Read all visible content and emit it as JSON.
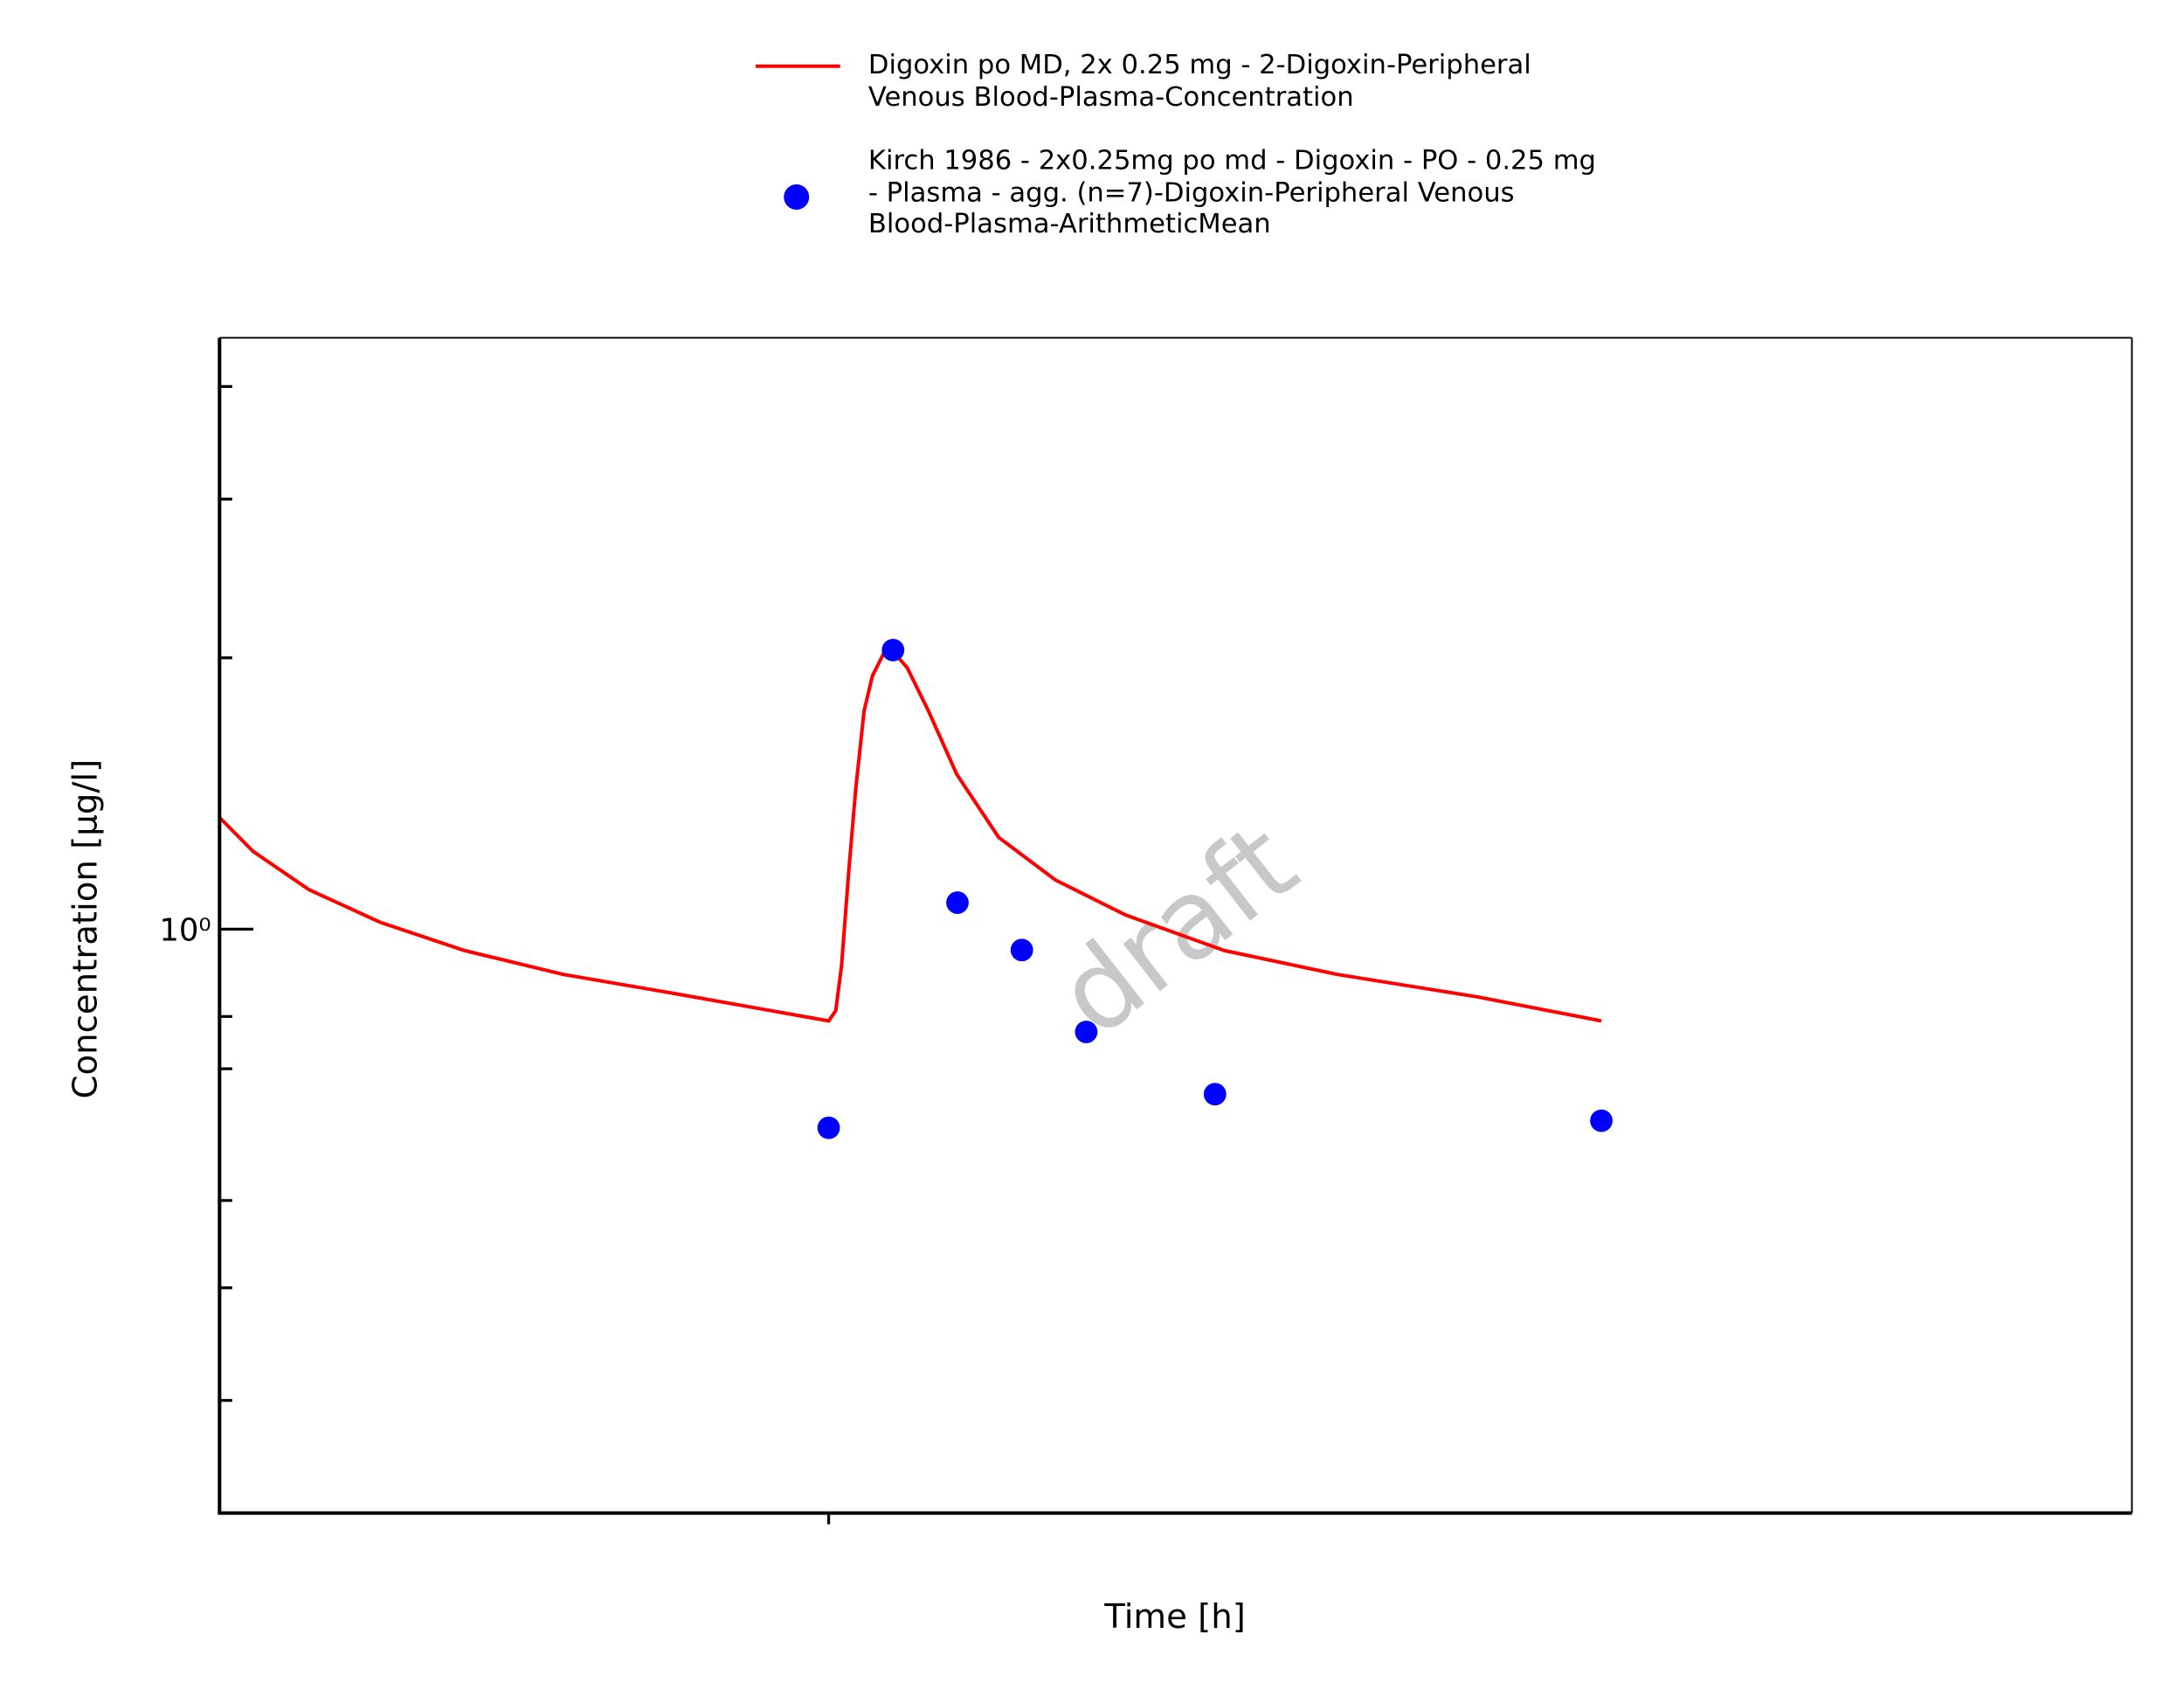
{
  "chart_data": {
    "type": "line",
    "x_label": "Time [h]",
    "y_label": "Concentration [µg/l]",
    "watermark": "draft",
    "log_y": true,
    "xlim": [
      14.54,
      44.24
    ],
    "xticks": [
      24
    ],
    "ylim": [
      0.225,
      4.53
    ],
    "yticks": [
      {
        "value": 1,
        "label": "10⁰"
      }
    ],
    "yminorticks": [
      0.3,
      0.4,
      0.5,
      0.7,
      0.8,
      2,
      3,
      4
    ],
    "legend": "top",
    "series": [
      {
        "name": "Digoxin po MD, 2x 0.25 mg - 2-Digoxin-Peripheral Venous Blood-Plasma-Concentration",
        "mode": "line",
        "color": "#ff0000",
        "x": [
          14.54,
          15.06,
          15.93,
          17.03,
          18.34,
          19.87,
          21.62,
          24.0,
          24.11,
          24.2,
          24.31,
          24.42,
          24.55,
          24.68,
          24.85,
          24.98,
          25.22,
          25.55,
          25.99,
          26.64,
          27.52,
          28.61,
          30.14,
          31.89,
          34.08,
          36.0
        ],
        "values": [
          1.33,
          1.22,
          1.106,
          1.018,
          0.947,
          0.891,
          0.848,
          0.791,
          0.812,
          0.911,
          1.155,
          1.43,
          1.746,
          1.91,
          2.02,
          2.04,
          1.95,
          1.746,
          1.485,
          1.264,
          1.134,
          1.037,
          0.947,
          0.891,
          0.841,
          0.791
        ]
      },
      {
        "name": "Kirch 1986 - 2x0.25mg po md - Digoxin - PO - 0.25 mg - Plasma - agg. (n=7)-Digoxin-Peripheral Venous Blood-Plasma-ArithmeticMean",
        "mode": "markers",
        "color": "#0000ff",
        "x": [
          24,
          25,
          26,
          27,
          28,
          30,
          36
        ],
        "values": [
          0.602,
          2.04,
          1.07,
          0.948,
          0.769,
          0.656,
          0.613
        ]
      }
    ]
  }
}
